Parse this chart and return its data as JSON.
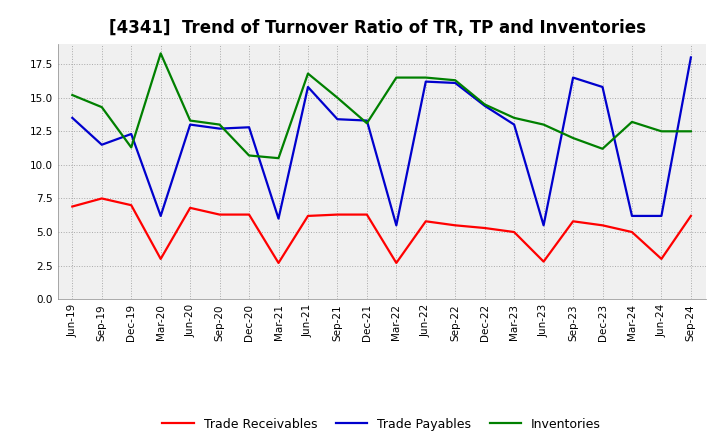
{
  "title": "[4341]  Trend of Turnover Ratio of TR, TP and Inventories",
  "x_labels": [
    "Jun-19",
    "Sep-19",
    "Dec-19",
    "Mar-20",
    "Jun-20",
    "Sep-20",
    "Dec-20",
    "Mar-21",
    "Jun-21",
    "Sep-21",
    "Dec-21",
    "Mar-22",
    "Jun-22",
    "Sep-22",
    "Dec-22",
    "Mar-23",
    "Jun-23",
    "Sep-23",
    "Dec-23",
    "Mar-24",
    "Jun-24",
    "Sep-24"
  ],
  "trade_receivables": [
    6.9,
    7.5,
    7.0,
    3.0,
    6.8,
    6.3,
    6.3,
    2.7,
    6.2,
    6.3,
    6.3,
    2.7,
    5.8,
    5.5,
    5.3,
    5.0,
    2.8,
    5.8,
    5.5,
    5.0,
    3.0,
    6.2
  ],
  "trade_payables": [
    13.5,
    11.5,
    12.3,
    6.2,
    13.0,
    12.7,
    12.8,
    6.0,
    15.8,
    13.4,
    13.3,
    5.5,
    16.2,
    16.1,
    14.4,
    13.0,
    5.5,
    16.5,
    15.8,
    6.2,
    6.2,
    18.0
  ],
  "inventories": [
    15.2,
    14.3,
    11.3,
    18.3,
    13.3,
    13.0,
    10.7,
    10.5,
    16.8,
    15.0,
    13.1,
    16.5,
    16.5,
    16.3,
    14.5,
    13.5,
    13.0,
    12.0,
    11.2,
    13.2,
    12.5,
    12.5
  ],
  "ylim": [
    0,
    19
  ],
  "yticks": [
    0.0,
    2.5,
    5.0,
    7.5,
    10.0,
    12.5,
    15.0,
    17.5
  ],
  "tr_color": "#ff0000",
  "tp_color": "#0000cd",
  "inv_color": "#008000",
  "plot_bg_color": "#f0f0f0",
  "fig_bg_color": "#ffffff",
  "grid_color": "#aaaaaa",
  "legend_tr": "Trade Receivables",
  "legend_tp": "Trade Payables",
  "legend_inv": "Inventories",
  "title_fontsize": 12,
  "tick_fontsize": 7.5,
  "legend_fontsize": 9,
  "linewidth": 1.6
}
